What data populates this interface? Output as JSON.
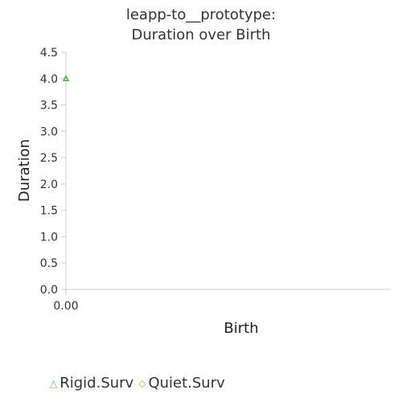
{
  "chart_data": {
    "type": "scatter",
    "title_lines": [
      "leapp-to__prototype:",
      "Duration over Birth"
    ],
    "xlabel": "Birth",
    "ylabel": "Duration",
    "x_ticks": [
      "0.00"
    ],
    "y_ticks": [
      "0.0",
      "0.5",
      "1.0",
      "1.5",
      "2.0",
      "2.5",
      "3.0",
      "3.5",
      "4.0",
      "4.5"
    ],
    "xlim": [
      0,
      1
    ],
    "ylim": [
      0,
      4.5
    ],
    "grid": false,
    "legend_position": "bottom-left",
    "series": [
      {
        "name": "Rigid.Surv",
        "marker": "triangle",
        "color": "#4daf4a",
        "points": [
          {
            "x": 0,
            "y": 4.0
          }
        ]
      },
      {
        "name": "Quiet.Surv",
        "marker": "diamond",
        "color": "#a6d96a",
        "points": []
      }
    ]
  }
}
